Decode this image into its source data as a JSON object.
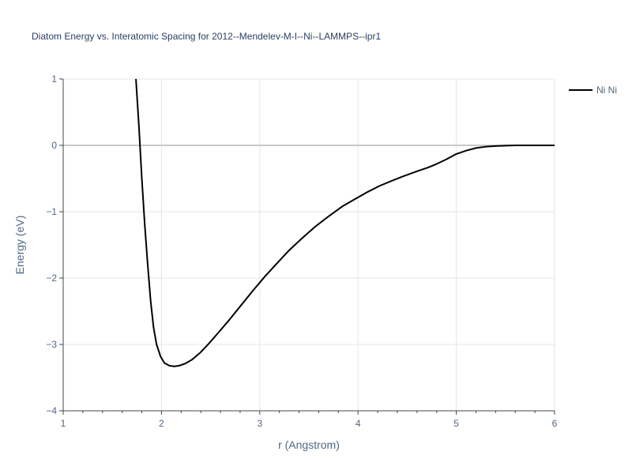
{
  "chart_data": {
    "type": "line",
    "title": "Diatom Energy vs. Interatomic Spacing for 2012--Mendelev-M-I--Ni--LAMMPS--ipr1",
    "xlabel": "r (Angstrom)",
    "ylabel": "Energy (eV)",
    "xlim": [
      1,
      6
    ],
    "ylim": [
      -4,
      1
    ],
    "x_ticks": [
      1,
      2,
      3,
      4,
      5,
      6
    ],
    "y_ticks": [
      1,
      0,
      -1,
      -2,
      -3,
      -4
    ],
    "x_tick_labels": [
      "1",
      "2",
      "3",
      "4",
      "5",
      "6"
    ],
    "y_tick_labels": [
      "1",
      "0",
      "−1",
      "−2",
      "−3",
      "−4"
    ],
    "grid": true,
    "legend_position": "top-right",
    "series": [
      {
        "name": "Ni Ni",
        "color": "#000000",
        "x": [
          1.74,
          1.77,
          1.8,
          1.83,
          1.86,
          1.89,
          1.92,
          1.95,
          1.99,
          2.03,
          2.08,
          2.13,
          2.18,
          2.24,
          2.31,
          2.39,
          2.48,
          2.58,
          2.69,
          2.81,
          2.93,
          3.05,
          3.18,
          3.3,
          3.43,
          3.56,
          3.7,
          3.84,
          3.98,
          4.1,
          4.22,
          4.35,
          4.47,
          4.6,
          4.72,
          4.8,
          4.9,
          5.0,
          5.1,
          5.2,
          5.3,
          5.4,
          5.5,
          5.6,
          5.7,
          5.8,
          6.0
        ],
        "y": [
          1.0,
          0.3,
          -0.5,
          -1.2,
          -1.8,
          -2.35,
          -2.75,
          -3.0,
          -3.18,
          -3.28,
          -3.32,
          -3.33,
          -3.32,
          -3.29,
          -3.23,
          -3.13,
          -2.99,
          -2.82,
          -2.63,
          -2.41,
          -2.19,
          -1.98,
          -1.77,
          -1.58,
          -1.4,
          -1.23,
          -1.07,
          -0.92,
          -0.8,
          -0.7,
          -0.61,
          -0.53,
          -0.46,
          -0.39,
          -0.33,
          -0.28,
          -0.21,
          -0.13,
          -0.08,
          -0.04,
          -0.02,
          -0.01,
          -0.005,
          0.0,
          0.0,
          0.0,
          0.0
        ]
      }
    ]
  }
}
